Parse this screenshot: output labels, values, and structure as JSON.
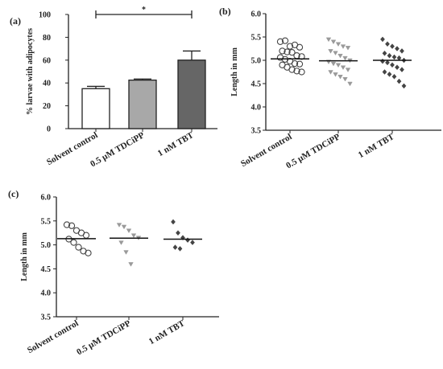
{
  "chart_data": [
    {
      "panel": "(a)",
      "type": "bar",
      "ylabel": "% larvae with adipocytes",
      "ylim": [
        0,
        100
      ],
      "yticks": [
        "0",
        "20",
        "40",
        "60",
        "80",
        "100"
      ],
      "categories": [
        "Solvent control",
        "0.5 µM TDCiPP",
        "1 nM TBT"
      ],
      "values": [
        35,
        42.5,
        60
      ],
      "errors": [
        2,
        1,
        8
      ],
      "colors": [
        "#ffffff",
        "#a8a8a8",
        "#666666"
      ],
      "significance": {
        "from": "Solvent control",
        "to": "1 nM TBT",
        "label": "*"
      }
    },
    {
      "panel": "(b)",
      "type": "scatter",
      "ylabel": "Length in mm",
      "ylim": [
        3.5,
        6.0
      ],
      "yticks": [
        "3.5",
        "4.0",
        "4.5",
        "5.0",
        "5.5",
        "6.0"
      ],
      "categories": [
        "Solvent control",
        "0.5 µM TDCiPP",
        "1 nM TBT"
      ],
      "means": [
        5.03,
        4.99,
        5.0
      ],
      "marker_colors": [
        "#444444",
        "#9a9a9a",
        "#444444"
      ],
      "series": [
        {
          "values": [
            5.4,
            5.42,
            5.3,
            5.33,
            5.28,
            5.2,
            5.18,
            5.17,
            5.1,
            5.08,
            5.06,
            5.02,
            4.98,
            4.93,
            4.92,
            4.9,
            4.85,
            4.8,
            4.77,
            4.75
          ]
        },
        {
          "values": [
            5.45,
            5.4,
            5.35,
            5.3,
            5.27,
            5.2,
            5.16,
            5.1,
            5.05,
            5.0,
            4.97,
            4.93,
            4.9,
            4.85,
            4.8,
            4.75,
            4.7,
            4.65,
            4.6,
            4.5
          ]
        },
        {
          "values": [
            5.45,
            5.35,
            5.3,
            5.25,
            5.2,
            5.15,
            5.1,
            5.07,
            5.05,
            5.0,
            4.98,
            4.95,
            4.9,
            4.85,
            4.8,
            4.75,
            4.7,
            4.65,
            4.55,
            4.45
          ]
        }
      ]
    },
    {
      "panel": "(c)",
      "type": "scatter",
      "ylabel": "Length in mm",
      "ylim": [
        3.5,
        6.0
      ],
      "yticks": [
        "3.5",
        "4.0",
        "4.5",
        "5.0",
        "5.5",
        "6.0"
      ],
      "categories": [
        "Solvent control",
        "0.5 µM TDCiPP",
        "1 nM TBT"
      ],
      "means": [
        5.13,
        5.14,
        5.12
      ],
      "marker_colors": [
        "#444444",
        "#9a9a9a",
        "#444444"
      ],
      "series": [
        {
          "values": [
            5.42,
            5.4,
            5.3,
            5.25,
            5.2,
            5.12,
            5.05,
            4.95,
            4.87,
            4.83
          ]
        },
        {
          "values": [
            5.42,
            5.38,
            5.3,
            5.2,
            5.15,
            5.05,
            4.85,
            4.6
          ]
        },
        {
          "values": [
            5.48,
            5.25,
            5.15,
            5.1,
            5.05,
            4.95,
            4.92
          ]
        }
      ]
    }
  ]
}
